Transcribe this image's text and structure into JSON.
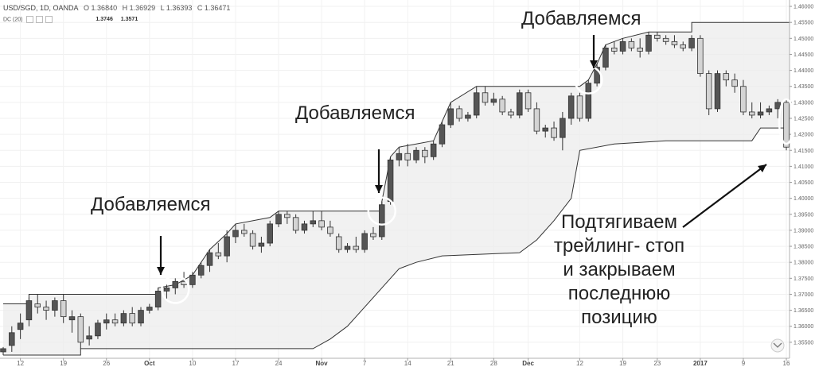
{
  "header": {
    "symbol": "USD/SGD, 1D, OANDA",
    "open": "O 1.36840",
    "high": "H 1.36929",
    "low": "L 1.36393",
    "close": "C 1.36471"
  },
  "indicator": {
    "name": "DC (20)",
    "upper": "1.3746",
    "lower": "1.3571"
  },
  "annotations": {
    "add1": "Добавляемся",
    "add2": "Добавляемся",
    "add3": "Добавляемся",
    "trail": [
      "Подтягиваем",
      "трейлинг- стоп",
      "и закрываем",
      "последнюю",
      "позицию"
    ]
  },
  "chart_data": {
    "type": "candlestick",
    "symbol": "USD/SGD",
    "timeframe": "1D",
    "source": "OANDA",
    "ylim": [
      1.35,
      1.462
    ],
    "y_ticks": [
      "1.35500",
      "1.36000",
      "1.36500",
      "1.37000",
      "1.37500",
      "1.38000",
      "1.38500",
      "1.39000",
      "1.39500",
      "1.40000",
      "1.40500",
      "1.41000",
      "1.41500",
      "1.42000",
      "1.42500",
      "1.43000",
      "1.43500",
      "1.44000",
      "1.44500",
      "1.45000",
      "1.45500",
      "1.46000"
    ],
    "x_ticks": [
      "12",
      "19",
      "26",
      "Oct",
      "10",
      "17",
      "24",
      "Nov",
      "7",
      "14",
      "21",
      "28",
      "Dec",
      "12",
      "19",
      "23",
      "2017",
      "9",
      "16"
    ],
    "x_tick_index": [
      2,
      7,
      12,
      17,
      22,
      27,
      32,
      37,
      42,
      47,
      52,
      57,
      61,
      67,
      72,
      76,
      81,
      86,
      91
    ],
    "candles": [
      [
        1.352,
        1.3535,
        1.351,
        1.353
      ],
      [
        1.354,
        1.36,
        1.352,
        1.358
      ],
      [
        1.359,
        1.364,
        1.356,
        1.361
      ],
      [
        1.362,
        1.369,
        1.36,
        1.368
      ],
      [
        1.367,
        1.37,
        1.364,
        1.366
      ],
      [
        1.366,
        1.368,
        1.362,
        1.365
      ],
      [
        1.365,
        1.369,
        1.363,
        1.368
      ],
      [
        1.368,
        1.37,
        1.361,
        1.363
      ],
      [
        1.362,
        1.365,
        1.358,
        1.363
      ],
      [
        1.363,
        1.364,
        1.353,
        1.355
      ],
      [
        1.356,
        1.36,
        1.354,
        1.357
      ],
      [
        1.357,
        1.362,
        1.356,
        1.361
      ],
      [
        1.361,
        1.364,
        1.359,
        1.362
      ],
      [
        1.362,
        1.364,
        1.36,
        1.361
      ],
      [
        1.361,
        1.365,
        1.36,
        1.364
      ],
      [
        1.364,
        1.366,
        1.36,
        1.361
      ],
      [
        1.361,
        1.366,
        1.36,
        1.365
      ],
      [
        1.365,
        1.367,
        1.364,
        1.366
      ],
      [
        1.366,
        1.372,
        1.365,
        1.371
      ],
      [
        1.371,
        1.373,
        1.368,
        1.372
      ],
      [
        1.372,
        1.375,
        1.37,
        1.374
      ],
      [
        1.374,
        1.377,
        1.372,
        1.373
      ],
      [
        1.373,
        1.377,
        1.372,
        1.376
      ],
      [
        1.376,
        1.38,
        1.375,
        1.379
      ],
      [
        1.379,
        1.384,
        1.377,
        1.383
      ],
      [
        1.383,
        1.386,
        1.381,
        1.382
      ],
      [
        1.382,
        1.39,
        1.38,
        1.388
      ],
      [
        1.388,
        1.392,
        1.386,
        1.39
      ],
      [
        1.39,
        1.392,
        1.388,
        1.389
      ],
      [
        1.389,
        1.39,
        1.384,
        1.385
      ],
      [
        1.385,
        1.388,
        1.383,
        1.386
      ],
      [
        1.386,
        1.393,
        1.385,
        1.392
      ],
      [
        1.392,
        1.396,
        1.391,
        1.395
      ],
      [
        1.395,
        1.396,
        1.392,
        1.394
      ],
      [
        1.394,
        1.395,
        1.389,
        1.39
      ],
      [
        1.39,
        1.393,
        1.389,
        1.392
      ],
      [
        1.392,
        1.396,
        1.391,
        1.393
      ],
      [
        1.393,
        1.396,
        1.39,
        1.391
      ],
      [
        1.391,
        1.393,
        1.388,
        1.389
      ],
      [
        1.388,
        1.389,
        1.383,
        1.384
      ],
      [
        1.384,
        1.386,
        1.383,
        1.385
      ],
      [
        1.385,
        1.388,
        1.383,
        1.384
      ],
      [
        1.384,
        1.39,
        1.383,
        1.389
      ],
      [
        1.389,
        1.391,
        1.387,
        1.388
      ],
      [
        1.388,
        1.399,
        1.387,
        1.398
      ],
      [
        1.399,
        1.413,
        1.398,
        1.412
      ],
      [
        1.412,
        1.416,
        1.41,
        1.414
      ],
      [
        1.414,
        1.417,
        1.41,
        1.412
      ],
      [
        1.412,
        1.416,
        1.411,
        1.415
      ],
      [
        1.415,
        1.416,
        1.411,
        1.413
      ],
      [
        1.413,
        1.418,
        1.412,
        1.417
      ],
      [
        1.417,
        1.424,
        1.416,
        1.423
      ],
      [
        1.423,
        1.43,
        1.422,
        1.428
      ],
      [
        1.428,
        1.429,
        1.424,
        1.425
      ],
      [
        1.425,
        1.427,
        1.424,
        1.426
      ],
      [
        1.426,
        1.435,
        1.425,
        1.433
      ],
      [
        1.433,
        1.435,
        1.429,
        1.43
      ],
      [
        1.43,
        1.433,
        1.429,
        1.431
      ],
      [
        1.431,
        1.432,
        1.426,
        1.427
      ],
      [
        1.427,
        1.428,
        1.425,
        1.426
      ],
      [
        1.426,
        1.434,
        1.425,
        1.433
      ],
      [
        1.433,
        1.434,
        1.427,
        1.428
      ],
      [
        1.428,
        1.43,
        1.42,
        1.421
      ],
      [
        1.421,
        1.423,
        1.419,
        1.422
      ],
      [
        1.422,
        1.424,
        1.418,
        1.419
      ],
      [
        1.419,
        1.427,
        1.415,
        1.425
      ],
      [
        1.425,
        1.433,
        1.423,
        1.432
      ],
      [
        1.432,
        1.433,
        1.424,
        1.425
      ],
      [
        1.425,
        1.437,
        1.424,
        1.436
      ],
      [
        1.436,
        1.442,
        1.435,
        1.441
      ],
      [
        1.441,
        1.448,
        1.44,
        1.447
      ],
      [
        1.447,
        1.449,
        1.445,
        1.446
      ],
      [
        1.446,
        1.45,
        1.445,
        1.449
      ],
      [
        1.449,
        1.45,
        1.446,
        1.447
      ],
      [
        1.447,
        1.45,
        1.444,
        1.446
      ],
      [
        1.446,
        1.452,
        1.445,
        1.451
      ],
      [
        1.451,
        1.452,
        1.449,
        1.45
      ],
      [
        1.45,
        1.451,
        1.448,
        1.449
      ],
      [
        1.449,
        1.451,
        1.447,
        1.448
      ],
      [
        1.448,
        1.449,
        1.446,
        1.447
      ],
      [
        1.447,
        1.451,
        1.446,
        1.45
      ],
      [
        1.45,
        1.451,
        1.438,
        1.439
      ],
      [
        1.439,
        1.44,
        1.426,
        1.428
      ],
      [
        1.428,
        1.44,
        1.427,
        1.439
      ],
      [
        1.439,
        1.44,
        1.435,
        1.437
      ],
      [
        1.437,
        1.439,
        1.433,
        1.435
      ],
      [
        1.435,
        1.437,
        1.426,
        1.427
      ],
      [
        1.427,
        1.43,
        1.425,
        1.426
      ],
      [
        1.426,
        1.43,
        1.425,
        1.427
      ],
      [
        1.427,
        1.429,
        1.426,
        1.428
      ],
      [
        1.428,
        1.431,
        1.425,
        1.43
      ],
      [
        1.43,
        1.431,
        1.415,
        1.416
      ]
    ],
    "donchian_upper": [
      [
        0,
        1.367
      ],
      [
        3,
        1.367
      ],
      [
        3,
        1.37
      ],
      [
        18,
        1.37
      ],
      [
        18,
        1.372
      ],
      [
        20,
        1.373
      ],
      [
        22,
        1.376
      ],
      [
        23,
        1.38
      ],
      [
        24,
        1.384
      ],
      [
        26,
        1.389
      ],
      [
        27,
        1.392
      ],
      [
        31,
        1.394
      ],
      [
        32,
        1.396
      ],
      [
        44,
        1.396
      ],
      [
        44,
        1.399
      ],
      [
        45,
        1.413
      ],
      [
        46,
        1.416
      ],
      [
        48,
        1.417
      ],
      [
        50,
        1.418
      ],
      [
        51,
        1.424
      ],
      [
        52,
        1.43
      ],
      [
        55,
        1.435
      ],
      [
        67,
        1.435
      ],
      [
        68,
        1.437
      ],
      [
        69,
        1.442
      ],
      [
        70,
        1.448
      ],
      [
        71,
        1.449
      ],
      [
        72,
        1.45
      ],
      [
        75,
        1.452
      ],
      [
        80,
        1.452
      ],
      [
        80,
        1.455
      ],
      [
        92,
        1.455
      ]
    ],
    "donchian_lower": [
      [
        0,
        1.351
      ],
      [
        9,
        1.351
      ],
      [
        9,
        1.353
      ],
      [
        36,
        1.353
      ],
      [
        38,
        1.356
      ],
      [
        40,
        1.36
      ],
      [
        42,
        1.366
      ],
      [
        44,
        1.372
      ],
      [
        46,
        1.378
      ],
      [
        48,
        1.38
      ],
      [
        51,
        1.382
      ],
      [
        60,
        1.383
      ],
      [
        62,
        1.387
      ],
      [
        64,
        1.393
      ],
      [
        66,
        1.4
      ],
      [
        67,
        1.415
      ],
      [
        71,
        1.417
      ],
      [
        77,
        1.418
      ],
      [
        87,
        1.418
      ],
      [
        88,
        1.422
      ],
      [
        92,
        1.422
      ]
    ]
  }
}
